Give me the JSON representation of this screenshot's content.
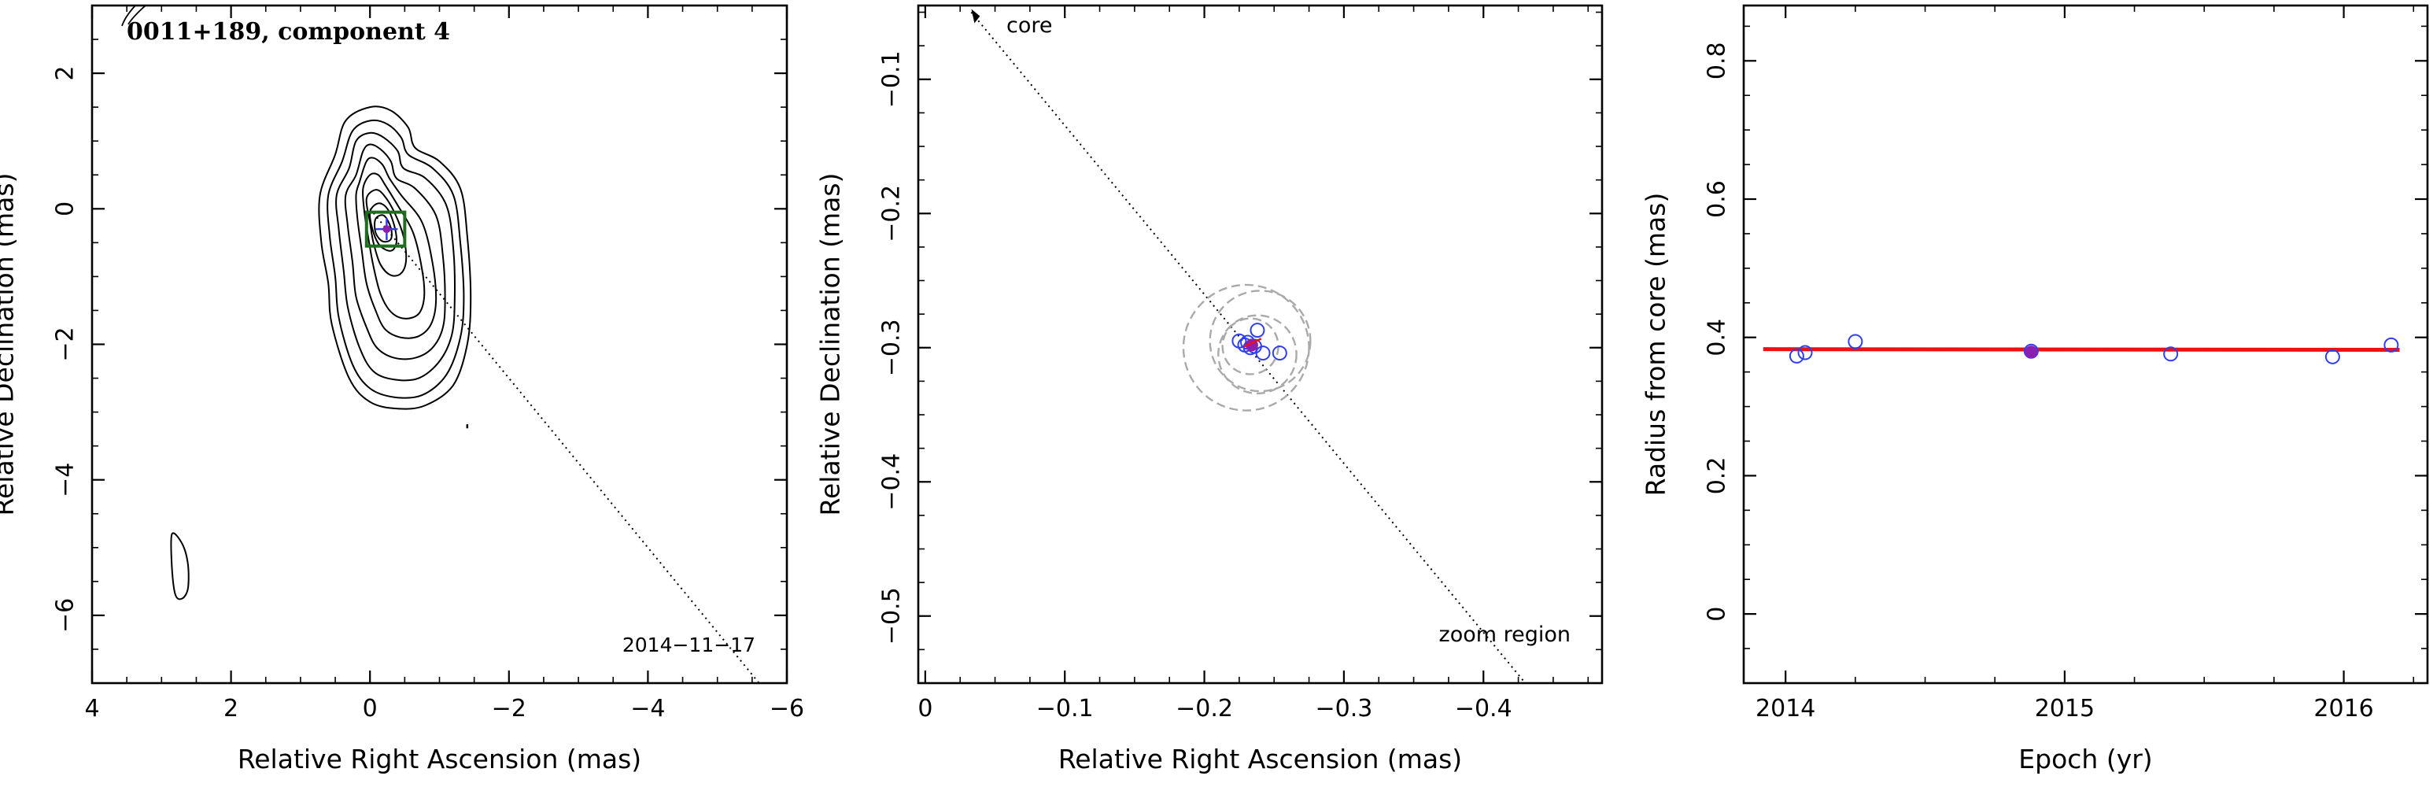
{
  "chart_data": [
    {
      "type": "contour",
      "title": "0011+189, component 4",
      "date_label": "2014−11−17",
      "xlabel": "Relative Right Ascension (mas)",
      "ylabel": "Relative Declination (mas)",
      "xlim": [
        4,
        -6
      ],
      "ylim": [
        -7,
        3
      ],
      "xticks": [
        4,
        2,
        0,
        -2,
        -4,
        -6
      ],
      "xtick_labels": [
        "4",
        "2",
        "0",
        "−2",
        "−4",
        "−6"
      ],
      "yticks": [
        2,
        0,
        -2,
        -4,
        -6
      ],
      "ytick_labels": [
        "2",
        "0",
        "−2",
        "−4",
        "−6"
      ],
      "component_position": [
        -0.24,
        -0.3
      ],
      "zoom_box": {
        "x": [
          0.05,
          -0.5
        ],
        "y": [
          -0.05,
          -0.55
        ]
      },
      "track_line": {
        "from": [
          0,
          0
        ],
        "to": [
          -5.6,
          -7
        ]
      },
      "contours": [
        {
          "level": 1,
          "points": [
            [
              0.5,
              0.8
            ],
            [
              0.35,
              1.3
            ],
            [
              0.0,
              1.5
            ],
            [
              -0.3,
              1.45
            ],
            [
              -0.55,
              1.2
            ],
            [
              -0.65,
              0.9
            ],
            [
              -1.0,
              0.7
            ],
            [
              -1.3,
              0.3
            ],
            [
              -1.4,
              -0.4
            ],
            [
              -1.45,
              -1.3
            ],
            [
              -1.4,
              -2.0
            ],
            [
              -1.2,
              -2.6
            ],
            [
              -0.8,
              -2.9
            ],
            [
              -0.4,
              -2.95
            ],
            [
              0.0,
              -2.85
            ],
            [
              0.3,
              -2.5
            ],
            [
              0.55,
              -1.7
            ],
            [
              0.6,
              -1.1
            ],
            [
              0.7,
              -0.5
            ],
            [
              0.72,
              0.2
            ]
          ]
        },
        {
          "level": 2,
          "points": [
            [
              0.4,
              0.7
            ],
            [
              0.25,
              1.15
            ],
            [
              0.0,
              1.3
            ],
            [
              -0.25,
              1.25
            ],
            [
              -0.45,
              1.05
            ],
            [
              -0.55,
              0.8
            ],
            [
              -0.9,
              0.6
            ],
            [
              -1.2,
              0.2
            ],
            [
              -1.3,
              -0.5
            ],
            [
              -1.35,
              -1.3
            ],
            [
              -1.3,
              -1.9
            ],
            [
              -1.1,
              -2.45
            ],
            [
              -0.75,
              -2.75
            ],
            [
              -0.35,
              -2.78
            ],
            [
              0.0,
              -2.65
            ],
            [
              0.25,
              -2.3
            ],
            [
              0.45,
              -1.6
            ],
            [
              0.5,
              -1.0
            ],
            [
              0.58,
              -0.4
            ],
            [
              0.6,
              0.2
            ]
          ]
        },
        {
          "level": 3,
          "points": [
            [
              0.3,
              0.6
            ],
            [
              0.2,
              1.0
            ],
            [
              0.0,
              1.12
            ],
            [
              -0.2,
              1.05
            ],
            [
              -0.4,
              0.85
            ],
            [
              -0.48,
              0.6
            ],
            [
              -0.8,
              0.45
            ],
            [
              -1.1,
              0.05
            ],
            [
              -1.2,
              -0.6
            ],
            [
              -1.22,
              -1.3
            ],
            [
              -1.18,
              -1.85
            ],
            [
              -1.0,
              -2.25
            ],
            [
              -0.7,
              -2.5
            ],
            [
              -0.35,
              -2.52
            ],
            [
              -0.05,
              -2.4
            ],
            [
              0.15,
              -2.05
            ],
            [
              0.32,
              -1.45
            ],
            [
              0.38,
              -0.9
            ],
            [
              0.45,
              -0.3
            ],
            [
              0.48,
              0.2
            ]
          ]
        },
        {
          "level": 4,
          "points": [
            [
              0.2,
              0.5
            ],
            [
              0.1,
              0.85
            ],
            [
              0.0,
              0.95
            ],
            [
              -0.15,
              0.88
            ],
            [
              -0.3,
              0.7
            ],
            [
              -0.38,
              0.45
            ],
            [
              -0.65,
              0.3
            ],
            [
              -0.95,
              -0.1
            ],
            [
              -1.05,
              -0.7
            ],
            [
              -1.08,
              -1.3
            ],
            [
              -1.05,
              -1.75
            ],
            [
              -0.9,
              -2.05
            ],
            [
              -0.65,
              -2.2
            ],
            [
              -0.35,
              -2.2
            ],
            [
              -0.1,
              -2.05
            ],
            [
              0.05,
              -1.75
            ],
            [
              0.2,
              -1.3
            ],
            [
              0.25,
              -0.8
            ],
            [
              0.32,
              -0.25
            ],
            [
              0.35,
              0.2
            ]
          ]
        },
        {
          "level": 5,
          "points": [
            [
              0.15,
              0.4
            ],
            [
              0.05,
              0.7
            ],
            [
              -0.05,
              0.75
            ],
            [
              -0.18,
              0.65
            ],
            [
              -0.28,
              0.45
            ],
            [
              -0.45,
              0.2
            ],
            [
              -0.75,
              -0.2
            ],
            [
              -0.9,
              -0.8
            ],
            [
              -0.95,
              -1.35
            ],
            [
              -0.88,
              -1.7
            ],
            [
              -0.7,
              -1.88
            ],
            [
              -0.45,
              -1.9
            ],
            [
              -0.22,
              -1.78
            ],
            [
              -0.08,
              -1.5
            ],
            [
              0.05,
              -1.1
            ],
            [
              0.12,
              -0.6
            ],
            [
              0.18,
              -0.15
            ],
            [
              0.2,
              0.2
            ]
          ]
        },
        {
          "level": 6,
          "points": [
            [
              0.1,
              0.3
            ],
            [
              0.0,
              0.5
            ],
            [
              -0.12,
              0.5
            ],
            [
              -0.22,
              0.35
            ],
            [
              -0.4,
              0.05
            ],
            [
              -0.62,
              -0.35
            ],
            [
              -0.75,
              -0.9
            ],
            [
              -0.78,
              -1.3
            ],
            [
              -0.7,
              -1.55
            ],
            [
              -0.5,
              -1.62
            ],
            [
              -0.3,
              -1.52
            ],
            [
              -0.15,
              -1.25
            ],
            [
              -0.05,
              -0.85
            ],
            [
              0.02,
              -0.45
            ],
            [
              0.08,
              -0.05
            ]
          ]
        },
        {
          "level": 7,
          "points": [
            [
              0.05,
              0.15
            ],
            [
              -0.08,
              0.28
            ],
            [
              -0.2,
              0.2
            ],
            [
              -0.35,
              -0.05
            ],
            [
              -0.48,
              -0.4
            ],
            [
              -0.52,
              -0.75
            ],
            [
              -0.45,
              -0.95
            ],
            [
              -0.3,
              -0.98
            ],
            [
              -0.15,
              -0.82
            ],
            [
              -0.05,
              -0.5
            ],
            [
              0.0,
              -0.2
            ]
          ]
        },
        {
          "level": 8,
          "points": [
            [
              0.0,
              -0.05
            ],
            [
              -0.12,
              0.08
            ],
            [
              -0.25,
              0.0
            ],
            [
              -0.35,
              -0.25
            ],
            [
              -0.38,
              -0.5
            ],
            [
              -0.3,
              -0.62
            ],
            [
              -0.15,
              -0.55
            ],
            [
              -0.05,
              -0.35
            ]
          ]
        },
        {
          "level": 9,
          "points": [
            [
              -0.08,
              -0.15
            ],
            [
              -0.2,
              -0.1
            ],
            [
              -0.3,
              -0.28
            ],
            [
              -0.3,
              -0.45
            ],
            [
              -0.18,
              -0.48
            ],
            [
              -0.08,
              -0.35
            ]
          ]
        },
        {
          "level": 10,
          "points": [
            [
              2.85,
              -4.8
            ],
            [
              2.7,
              -4.95
            ],
            [
              2.62,
              -5.25
            ],
            [
              2.62,
              -5.6
            ],
            [
              2.7,
              -5.75
            ],
            [
              2.8,
              -5.7
            ],
            [
              2.85,
              -5.3
            ]
          ]
        }
      ]
    },
    {
      "type": "scatter",
      "core_label": "core",
      "zoom_label": "zoom region",
      "xlabel": "Relative Right Ascension (mas)",
      "ylabel": "Relative Declination (mas)",
      "xlim": [
        0.005,
        -0.485
      ],
      "ylim": [
        -0.55,
        -0.045
      ],
      "xticks": [
        0,
        -0.1,
        -0.2,
        -0.3,
        -0.4
      ],
      "xtick_labels": [
        "0",
        "−0.1",
        "−0.2",
        "−0.3",
        "−0.4"
      ],
      "yticks": [
        -0.1,
        -0.2,
        -0.3,
        -0.4,
        -0.5
      ],
      "ytick_labels": [
        "−0.1",
        "−0.2",
        "−0.3",
        "−0.4",
        "−0.5"
      ],
      "track_line": {
        "from": [
          -0.033,
          -0.05
        ],
        "to": [
          -0.43,
          -0.55
        ]
      },
      "points": [
        {
          "x": -0.225,
          "y": -0.295
        },
        {
          "x": -0.231,
          "y": -0.296
        },
        {
          "x": -0.233,
          "y": -0.3
        },
        {
          "x": -0.238,
          "y": -0.287
        },
        {
          "x": -0.242,
          "y": -0.304
        },
        {
          "x": -0.254,
          "y": -0.304
        },
        {
          "x": -0.229,
          "y": -0.298
        },
        {
          "x": -0.236,
          "y": -0.299
        }
      ],
      "fitted_point": {
        "x": -0.234,
        "y": -0.298
      },
      "uncertainty_circles": [
        {
          "cx": -0.23,
          "cy": -0.3,
          "r": 0.045
        },
        {
          "cx": -0.24,
          "cy": -0.295,
          "r": 0.036
        },
        {
          "cx": -0.238,
          "cy": -0.305,
          "r": 0.028
        },
        {
          "cx": -0.233,
          "cy": -0.299,
          "r": 0.02
        }
      ]
    },
    {
      "type": "scatter",
      "xlabel": "Epoch (yr)",
      "ylabel": "Radius from core (mas)",
      "xlim": [
        2013.85,
        2016.3
      ],
      "ylim": [
        -0.1,
        0.88
      ],
      "xticks": [
        2014,
        2015,
        2016
      ],
      "xtick_labels": [
        "2014",
        "2015",
        "2016"
      ],
      "yticks": [
        0,
        0.2,
        0.4,
        0.6,
        0.8
      ],
      "ytick_labels": [
        "0",
        "0.2",
        "0.4",
        "0.6",
        "0.8"
      ],
      "points": [
        {
          "x": 2014.04,
          "y": 0.373
        },
        {
          "x": 2014.07,
          "y": 0.378
        },
        {
          "x": 2014.25,
          "y": 0.394
        },
        {
          "x": 2014.88,
          "y": 0.38
        },
        {
          "x": 2015.38,
          "y": 0.376
        },
        {
          "x": 2015.96,
          "y": 0.372
        },
        {
          "x": 2016.17,
          "y": 0.389
        }
      ],
      "highlight_point": {
        "x": 2014.88,
        "y": 0.379
      },
      "fit_line": {
        "x": [
          2013.92,
          2016.2
        ],
        "y": [
          0.383,
          0.382
        ]
      }
    }
  ],
  "colors": {
    "axes": "#000000",
    "contour": "#000000",
    "zoom_box": "#1e6e1e",
    "markers": "#2f3ff0",
    "highlight": "#8b1fb0",
    "fit_line": "#ee1111",
    "uncertainty": "#aaaaaa"
  }
}
